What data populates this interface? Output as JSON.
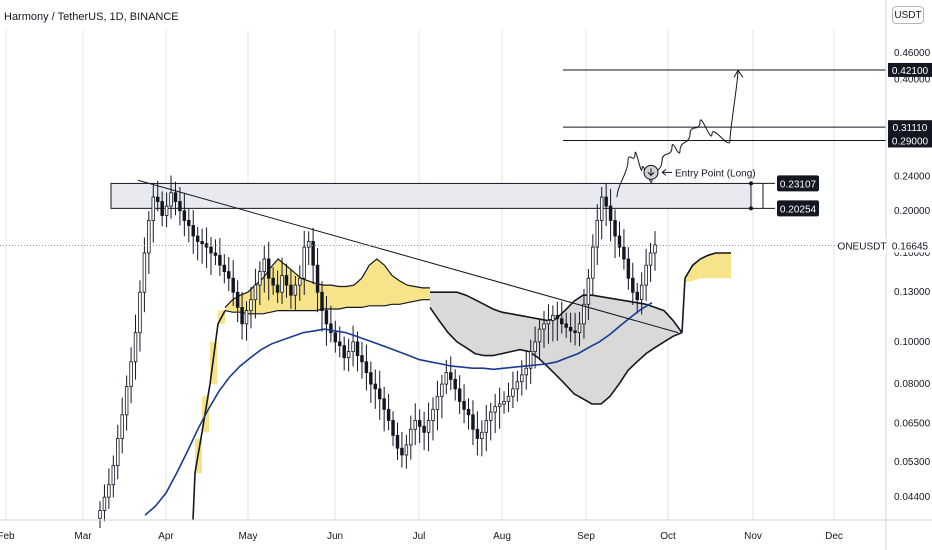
{
  "header": {
    "title": "Harmony / TetherUS, 1D, BINANCE",
    "currency": "USDT"
  },
  "colors": {
    "bull": "#131722",
    "bear": "#131722",
    "ma": "#1a3a8f",
    "cloud_fill": "#d9d9d9",
    "kumo_fill": "#f7e48a",
    "grid": "#e0e3eb"
  },
  "icons": {
    "entry_marker": "down-arrow-circle-icon"
  },
  "chart_data": {
    "type": "candlestick",
    "symbol": "ONEUSDT",
    "exchange": "BINANCE",
    "interval": "1D",
    "y_scale": "log",
    "ylim": [
      0.039,
      0.52
    ],
    "x_labels": [
      "Feb",
      "Mar",
      "Apr",
      "May",
      "Jun",
      "Jul",
      "Aug",
      "Sep",
      "Oct",
      "Nov",
      "Dec"
    ],
    "y_ticks": [
      "0.46000",
      "0.40000",
      "0.24000",
      "0.20000",
      "0.16000",
      "0.13000",
      "0.10000",
      "0.08000",
      "0.06500",
      "0.05300",
      "0.04400"
    ],
    "price_line": {
      "label": "ONEUSDT",
      "value": "0.16645"
    },
    "zone": {
      "top": "0.23107",
      "bottom": "0.20254"
    },
    "targets": [
      {
        "label": "0.42100",
        "value": 0.421
      },
      {
        "label": "0.31110",
        "value": 0.3111
      },
      {
        "label": "0.29000",
        "value": 0.29
      }
    ],
    "annotation": "Entry Point (Long)",
    "closes": [
      0.041,
      0.044,
      0.047,
      0.052,
      0.06,
      0.068,
      0.079,
      0.09,
      0.105,
      0.13,
      0.16,
      0.19,
      0.215,
      0.21,
      0.195,
      0.205,
      0.22,
      0.21,
      0.2,
      0.19,
      0.185,
      0.175,
      0.17,
      0.168,
      0.165,
      0.16,
      0.158,
      0.15,
      0.145,
      0.14,
      0.13,
      0.12,
      0.11,
      0.118,
      0.125,
      0.135,
      0.145,
      0.155,
      0.14,
      0.135,
      0.13,
      0.142,
      0.135,
      0.128,
      0.135,
      0.14,
      0.165,
      0.17,
      0.15,
      0.13,
      0.118,
      0.11,
      0.105,
      0.1,
      0.098,
      0.092,
      0.095,
      0.1,
      0.093,
      0.09,
      0.085,
      0.08,
      0.078,
      0.074,
      0.07,
      0.066,
      0.061,
      0.057,
      0.055,
      0.058,
      0.063,
      0.066,
      0.064,
      0.062,
      0.066,
      0.07,
      0.075,
      0.08,
      0.085,
      0.082,
      0.078,
      0.073,
      0.07,
      0.068,
      0.063,
      0.06,
      0.062,
      0.066,
      0.069,
      0.071,
      0.072,
      0.073,
      0.075,
      0.078,
      0.081,
      0.084,
      0.087,
      0.095,
      0.1,
      0.107,
      0.11,
      0.112,
      0.115,
      0.113,
      0.11,
      0.108,
      0.106,
      0.105,
      0.11,
      0.122,
      0.14,
      0.165,
      0.19,
      0.215,
      0.205,
      0.19,
      0.175,
      0.165,
      0.155,
      0.14,
      0.13,
      0.125,
      0.135,
      0.15,
      0.16,
      0.167
    ],
    "ma_line": [
      0.04,
      0.042,
      0.045,
      0.05,
      0.056,
      0.063,
      0.07,
      0.077,
      0.083,
      0.088,
      0.092,
      0.096,
      0.099,
      0.101,
      0.103,
      0.105,
      0.106,
      0.107,
      0.106,
      0.105,
      0.103,
      0.101,
      0.099,
      0.097,
      0.095,
      0.093,
      0.091,
      0.09,
      0.089,
      0.088,
      0.0875,
      0.087,
      0.087,
      0.0865,
      0.087,
      0.0875,
      0.088,
      0.0885,
      0.089,
      0.09,
      0.092,
      0.094,
      0.097,
      0.1,
      0.104,
      0.109,
      0.114,
      0.119,
      0.123
    ],
    "cloud_upper": [
      0.13,
      0.13,
      0.13,
      0.13,
      0.128,
      0.125,
      0.122,
      0.119,
      0.117,
      0.116,
      0.115,
      0.114,
      0.113,
      0.112,
      0.113,
      0.118,
      0.124,
      0.128,
      0.128,
      0.127,
      0.126,
      0.125,
      0.124,
      0.123,
      0.122,
      0.12,
      0.118,
      0.112,
      0.105
    ],
    "cloud_lower": [
      0.12,
      0.112,
      0.105,
      0.1,
      0.097,
      0.094,
      0.093,
      0.093,
      0.094,
      0.095,
      0.096,
      0.095,
      0.092,
      0.088,
      0.084,
      0.08,
      0.076,
      0.074,
      0.072,
      0.072,
      0.075,
      0.08,
      0.086,
      0.09,
      0.094,
      0.097,
      0.1,
      0.103,
      0.105
    ],
    "kumo_upper": [
      0.12,
      0.125,
      0.128,
      0.13,
      0.135,
      0.14,
      0.148,
      0.155,
      0.15,
      0.145,
      0.14,
      0.138,
      0.136,
      0.135,
      0.135,
      0.134,
      0.134,
      0.135,
      0.14,
      0.15,
      0.155,
      0.15,
      0.142,
      0.138,
      0.135,
      0.134,
      0.133,
      0.133
    ],
    "kumo_lower": [
      0.118,
      0.117,
      0.117,
      0.116,
      0.116,
      0.116,
      0.117,
      0.118,
      0.118,
      0.118,
      0.118,
      0.118,
      0.118,
      0.119,
      0.119,
      0.119,
      0.12,
      0.12,
      0.12,
      0.121,
      0.121,
      0.121,
      0.122,
      0.122,
      0.123,
      0.124,
      0.125,
      0.125
    ],
    "kumo_right_upper": [
      0.14,
      0.15,
      0.155,
      0.158,
      0.16,
      0.16,
      0.16
    ],
    "kumo_right_lower": [
      0.137,
      0.138,
      0.14,
      0.14,
      0.14,
      0.14,
      0.14
    ]
  }
}
